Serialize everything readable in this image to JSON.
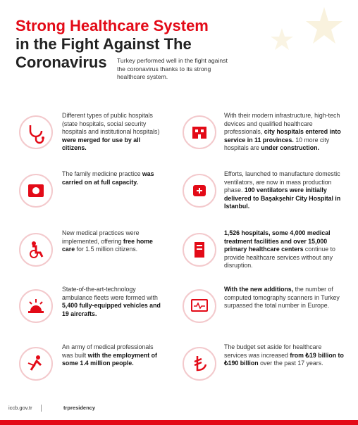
{
  "header": {
    "title_lines": [
      "Strong Healthcare System",
      "in the Fight Against The",
      "Coronavirus"
    ],
    "subtitle": "Turkey performed well in the fight against the coronavirus thanks to its strong healthcare system."
  },
  "left": [
    {
      "segments": [
        {
          "text": "Different types of public hospitals (state hospitals, social security hospitals and institutional hospitals) ",
          "bold": false
        },
        {
          "text": "were merged for use by all citizens.",
          "bold": true
        }
      ]
    },
    {
      "segments": [
        {
          "text": "The family medicine practice ",
          "bold": false
        },
        {
          "text": "was carried on at full capacity.",
          "bold": true
        }
      ]
    },
    {
      "segments": [
        {
          "text": "New medical practices were implemented, offering ",
          "bold": false
        },
        {
          "text": "free home care",
          "bold": true
        },
        {
          "text": " for 1.5 million citizens.",
          "bold": false
        }
      ]
    },
    {
      "segments": [
        {
          "text": "State-of-the-art-technology ambulance fleets were formed with ",
          "bold": false
        },
        {
          "text": "5,400 fully-equipped vehicles and 19 aircrafts.",
          "bold": true
        }
      ]
    },
    {
      "segments": [
        {
          "text": "An army of medical professionals was built ",
          "bold": false
        },
        {
          "text": "with the employment of some 1.4 million people.",
          "bold": true
        }
      ]
    }
  ],
  "right": [
    {
      "segments": [
        {
          "text": "With their modern infrastructure, high-tech devices and qualified healthcare professionals, ",
          "bold": false
        },
        {
          "text": "city hospitals entered into service in 11 provinces.",
          "bold": true
        },
        {
          "text": " 10 more city hospitals are ",
          "bold": false
        },
        {
          "text": "under construction.",
          "bold": true
        }
      ]
    },
    {
      "segments": [
        {
          "text": "Efforts, launched to manufacture domestic ventilators, are now in mass production phase. ",
          "bold": false
        },
        {
          "text": "100 ventilators were initially delivered to Başakşehir City Hospital in Istanbul.",
          "bold": true
        }
      ]
    },
    {
      "segments": [
        {
          "text": "1,526 hospitals, some 4,000 medical treatment facilities and over 15,000 primary healthcare centers",
          "bold": true
        },
        {
          "text": " continue to provide healthcare services without any disruption.",
          "bold": false
        }
      ]
    },
    {
      "segments": [
        {
          "text": "With the new additions,",
          "bold": true
        },
        {
          "text": " the number of computed tomography scanners in Turkey surpassed the total number in Europe.",
          "bold": false
        }
      ]
    },
    {
      "segments": [
        {
          "text": "The budget set aside for healthcare services was increased ",
          "bold": false
        },
        {
          "text": "from ₺19 billion to ₺190 billion",
          "bold": true
        },
        {
          "text": " over the past 17 years.",
          "bold": false
        }
      ]
    }
  ],
  "footer": {
    "website": "iccb.gov.tr",
    "handle": "trpresidency"
  }
}
